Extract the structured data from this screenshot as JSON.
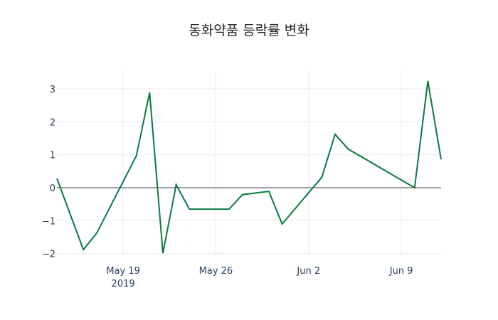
{
  "chart_data": {
    "type": "line",
    "title": "동화약품 등락률 변화",
    "xlabel": "",
    "ylabel": "",
    "x": [
      "2019-05-14",
      "2019-05-16",
      "2019-05-17",
      "2019-05-20",
      "2019-05-21",
      "2019-05-22",
      "2019-05-23",
      "2019-05-24",
      "2019-05-27",
      "2019-05-28",
      "2019-05-30",
      "2019-05-31",
      "2019-06-03",
      "2019-06-04",
      "2019-06-05",
      "2019-06-10",
      "2019-06-11",
      "2019-06-12"
    ],
    "series": [
      {
        "name": "등락률",
        "color": "#0b7a3e",
        "values": [
          0.28,
          -1.88,
          -1.38,
          0.97,
          2.89,
          -1.99,
          0.09,
          -0.65,
          -0.65,
          -0.21,
          -0.11,
          -1.1,
          0.32,
          1.62,
          1.17,
          0.0,
          3.24,
          0.86
        ]
      }
    ],
    "x_ticks": [
      {
        "date": "2019-05-19",
        "label": "May 19",
        "sublabel": "2019"
      },
      {
        "date": "2019-05-26",
        "label": "May 26",
        "sublabel": ""
      },
      {
        "date": "2019-06-02",
        "label": "Jun 2",
        "sublabel": ""
      },
      {
        "date": "2019-06-09",
        "label": "Jun 9",
        "sublabel": ""
      }
    ],
    "y_ticks": [
      3,
      2,
      1,
      0,
      -1,
      -2
    ],
    "y_tick_labels": [
      "3",
      "2",
      "1",
      "0",
      "−1",
      "−2"
    ],
    "ylim": [
      -2.2,
      3.5
    ],
    "xlim": [
      "2019-05-14",
      "2019-06-12"
    ],
    "grid": true,
    "zero_line": true,
    "legend": null
  }
}
